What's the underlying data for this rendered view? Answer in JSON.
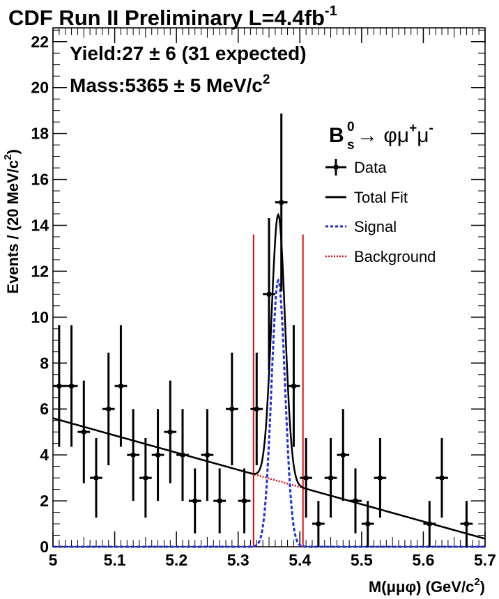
{
  "chart_data": {
    "type": "scatter",
    "title": {
      "main": "CDF Run II Preliminary L=4.4fb",
      "sup": "-1"
    },
    "annotations": {
      "yield": "Yield:27 ± 6 (31 expected)",
      "mass_main": "Mass:5365 ± 5 MeV/c",
      "mass_sup": "2"
    },
    "xlabel": {
      "main": "M(μμφ) (GeV/c",
      "sup": "2",
      "end": ")"
    },
    "ylabel": {
      "main": "Events / (20 MeV/c",
      "sup": "2",
      "end": ")"
    },
    "xlim": [
      5.0,
      5.7
    ],
    "ylim": [
      0,
      22.6
    ],
    "xticks": [
      5.0,
      5.1,
      5.2,
      5.3,
      5.4,
      5.5,
      5.6,
      5.7
    ],
    "xtick_labels": [
      "5",
      "5.1",
      "5.2",
      "5.3",
      "5.4",
      "5.5",
      "5.6",
      "5.7"
    ],
    "yticks": [
      0,
      2,
      4,
      6,
      8,
      10,
      12,
      14,
      16,
      18,
      20,
      22
    ],
    "ytick_labels": [
      "0",
      "2",
      "4",
      "6",
      "8",
      "10",
      "12",
      "14",
      "16",
      "18",
      "20",
      "22"
    ],
    "bin_width": 0.02,
    "data": {
      "name": "Data",
      "x": [
        5.01,
        5.03,
        5.05,
        5.07,
        5.09,
        5.11,
        5.13,
        5.15,
        5.17,
        5.19,
        5.21,
        5.23,
        5.25,
        5.27,
        5.29,
        5.31,
        5.33,
        5.35,
        5.37,
        5.39,
        5.41,
        5.43,
        5.45,
        5.47,
        5.49,
        5.51,
        5.53,
        5.61,
        5.63,
        5.67
      ],
      "y": [
        7,
        7,
        5,
        3,
        6,
        7,
        4,
        3,
        4,
        5,
        4,
        2,
        4,
        2,
        6,
        2,
        6,
        11,
        15,
        7,
        3,
        1,
        3,
        4,
        2,
        1,
        3,
        1,
        3,
        1
      ]
    },
    "fit": {
      "background": {
        "name": "Background",
        "x": [
          5.0,
          5.7
        ],
        "y": [
          5.6,
          0.35
        ]
      },
      "signal": {
        "name": "Signal",
        "mean": 5.365,
        "sigma": 0.011,
        "peak": 11.6
      },
      "total": {
        "name": "Total Fit"
      }
    },
    "signal_window": [
      5.325,
      5.405
    ],
    "legend": {
      "placement": "top-right",
      "process": {
        "b": "B",
        "sup": "0",
        "sub": "s",
        "rest": "→ φμ",
        "sup2": "+",
        "mid": "μ",
        "sup3": "-"
      },
      "entries": [
        "Data",
        "Total Fit",
        "Signal",
        "Background"
      ]
    },
    "colors": {
      "data": "#000000",
      "total": "#000000",
      "signal": "#1f2fe0",
      "background": "#e01010",
      "window": "#e01010"
    }
  }
}
